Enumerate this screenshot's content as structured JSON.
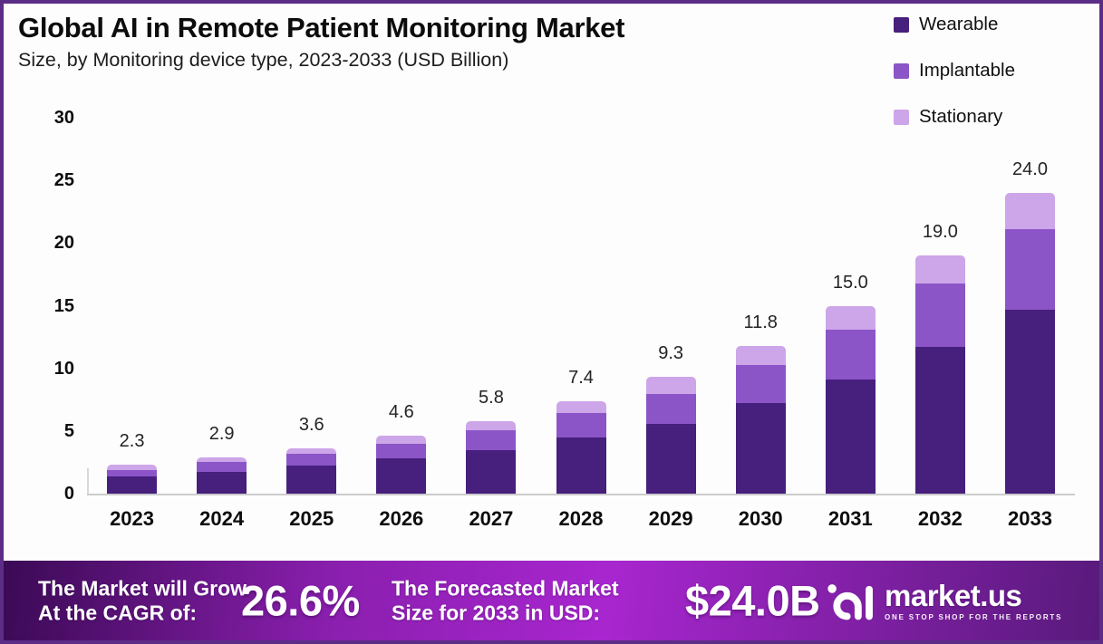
{
  "header": {
    "title": "Global AI in Remote Patient Monitoring Market",
    "subtitle": "Size, by Monitoring device type, 2023-2033 (USD Billion)"
  },
  "chart_data": {
    "type": "bar",
    "stacked": true,
    "title": "Global AI in Remote Patient Monitoring Market",
    "subtitle": "Size, by Monitoring device type, 2023-2033 (USD Billion)",
    "unit": "USD Billion",
    "categories": [
      "2023",
      "2024",
      "2025",
      "2026",
      "2027",
      "2028",
      "2029",
      "2030",
      "2031",
      "2032",
      "2033"
    ],
    "series": [
      {
        "name": "Wearable",
        "color": "#471f7d",
        "values": [
          1.35,
          1.7,
          2.25,
          2.85,
          3.5,
          4.45,
          5.6,
          7.2,
          9.1,
          11.7,
          14.7
        ]
      },
      {
        "name": "Implantable",
        "color": "#8b55c8",
        "values": [
          0.55,
          0.85,
          0.95,
          1.1,
          1.55,
          1.95,
          2.35,
          3.1,
          4.0,
          5.1,
          6.4
        ]
      },
      {
        "name": "Stationary",
        "color": "#cda5e9",
        "values": [
          0.4,
          0.35,
          0.4,
          0.65,
          0.75,
          1.0,
          1.35,
          1.5,
          1.9,
          2.2,
          2.9
        ]
      }
    ],
    "totals": [
      2.3,
      2.9,
      3.6,
      4.6,
      5.8,
      7.4,
      9.3,
      11.8,
      15.0,
      19.0,
      24.0
    ],
    "total_labels": [
      "2.3",
      "2.9",
      "3.6",
      "4.6",
      "5.8",
      "7.4",
      "9.3",
      "11.8",
      "15.0",
      "19.0",
      "24.0"
    ],
    "yticks": [
      30,
      25,
      20,
      15,
      10,
      5,
      0
    ],
    "ylim": [
      0,
      30
    ],
    "grid": false,
    "legend_position": "top-right"
  },
  "footer": {
    "cagr_label_line1": "The Market will Grow",
    "cagr_label_line2": "At the CAGR of:",
    "cagr_value": "26.6%",
    "forecast_label_line1": "The Forecasted Market",
    "forecast_label_line2": "Size for 2033 in USD:",
    "forecast_value": "$24.0B",
    "brand": {
      "name": "market.us",
      "tagline": "ONE STOP SHOP FOR THE REPORTS",
      "logo_icon": "marketus-squiggle-icon"
    }
  },
  "colors": {
    "frame_border": "#5c2d87",
    "page_bg": "#fdfdfd",
    "title_color": "#0c0c0c",
    "axis_line": "#cccccc",
    "wearable": "#471f7d",
    "implantable": "#8b55c8",
    "stationary": "#cda5e9",
    "footer_g1": "#3b0a55",
    "footer_g2": "#8a1fae",
    "footer_g3": "#a826cf",
    "footer_g4": "#591a7c",
    "footer_text": "#ffffff"
  }
}
